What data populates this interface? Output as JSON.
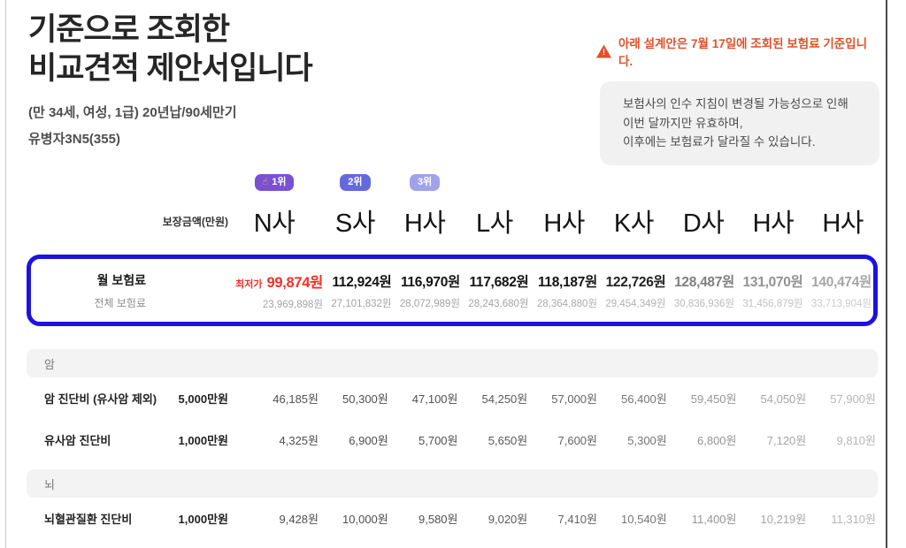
{
  "page": {
    "title_line1": "기준으로 조회한",
    "title_line2": "비교견적 제안서입니다",
    "subtitle1": "(만 34세, 여성, 1급) 20년납/90세만기",
    "subtitle2": "유병자3N5(355)"
  },
  "notice": {
    "warning_icon": "!",
    "warning_text": "아래 설계안은 7월 17일에 조회된 보험료 기준입니다.",
    "box_line1": "보험사의 인수 지침이 변경될 가능성으로 인해",
    "box_line2": "이번 달까지만 유효하며,",
    "box_line3": "이후에는 보험료가 달라질 수 있습니다."
  },
  "table": {
    "rank_badges": {
      "first": {
        "icon": "☝",
        "label": "1위",
        "color": "#7a50d4"
      },
      "second": {
        "label": "2위",
        "color": "#6569de"
      },
      "third": {
        "label": "3위",
        "color": "#a0a3ea"
      }
    },
    "amount_header": "보장금액(만원)",
    "companies": [
      "N사",
      "S사",
      "H사",
      "L사",
      "H사",
      "K사",
      "D사",
      "H사",
      "H사"
    ],
    "premium_row": {
      "label": "월 보험료",
      "sublabel": "전체 보험료",
      "lowest_tag": "최저가",
      "monthly": [
        "99,874원",
        "112,924원",
        "116,970원",
        "117,682원",
        "118,187원",
        "122,726원",
        "128,487원",
        "131,070원",
        "140,474원"
      ],
      "total": [
        "23,969,898원",
        "27,101,832원",
        "28,072,989원",
        "28,243,680원",
        "28,364,880원",
        "29,454,349원",
        "30,836,936원",
        "31,456,879원",
        "33,713,904원"
      ]
    },
    "sections": [
      {
        "name": "암",
        "rows": [
          {
            "label": "암 진단비 (유사암 제외)",
            "amount": "5,000만원",
            "values": [
              "46,185원",
              "50,300원",
              "47,100원",
              "54,250원",
              "57,000원",
              "56,400원",
              "59,450원",
              "54,050원",
              "57,900원"
            ]
          },
          {
            "label": "유사암 진단비",
            "amount": "1,000만원",
            "values": [
              "4,325원",
              "6,900원",
              "5,700원",
              "5,650원",
              "7,600원",
              "5,300원",
              "6,800원",
              "7,120원",
              "9,810원"
            ]
          }
        ]
      },
      {
        "name": "뇌",
        "rows": [
          {
            "label": "뇌혈관질환 진단비",
            "amount": "1,000만원",
            "values": [
              "9,428원",
              "10,000원",
              "9,580원",
              "9,020원",
              "7,410원",
              "10,540원",
              "11,400원",
              "10,219원",
              "11,310원"
            ]
          }
        ]
      }
    ]
  },
  "colors": {
    "highlight_border_blue": "#1d12e0",
    "lowest_price_red": "#f23026",
    "warning_orange": "#e0512a",
    "rank1_badge_purple": "#7a50d4",
    "rank2_badge_purple": "#6569de",
    "rank3_badge_purple": "#a0a3ea",
    "section_bar_gray": "#f3f3f4",
    "notice_box_gray": "#f1f1f2"
  }
}
